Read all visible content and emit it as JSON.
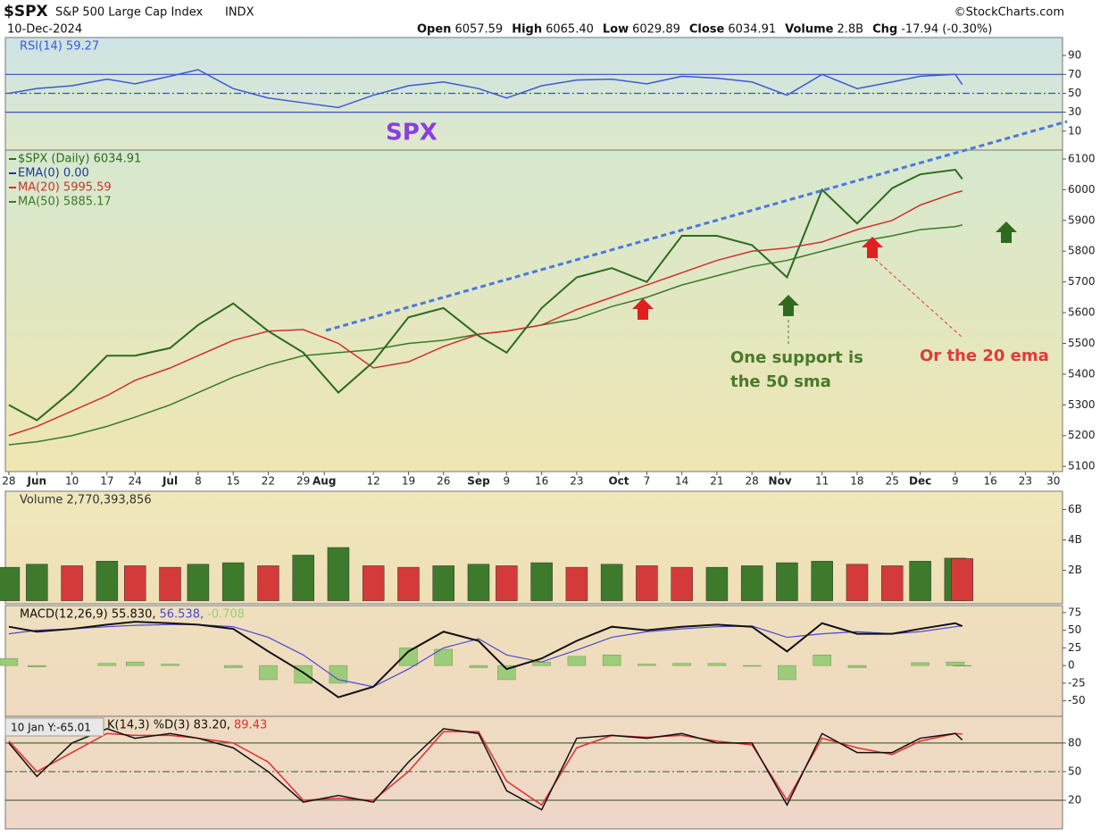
{
  "header": {
    "symbol": "$SPX",
    "name": "S&P 500 Large Cap Index",
    "exchange": "INDX",
    "date": "10-Dec-2024",
    "source": "©StockCharts.com",
    "quote": [
      {
        "label": "Open",
        "value": "6057.59"
      },
      {
        "label": "High",
        "value": "6065.40"
      },
      {
        "label": "Low",
        "value": "6029.89"
      },
      {
        "label": "Close",
        "value": "6034.91"
      },
      {
        "label": "Volume",
        "value": "2.8B"
      },
      {
        "label": "Chg",
        "value": "-17.94 (-0.30%)"
      }
    ]
  },
  "annotations": {
    "spx": "SPX",
    "support": [
      "One support is",
      "the 50 sma"
    ],
    "ema": "Or the 20 ema",
    "cursor": "10 Jan Y:-65.01"
  },
  "chart_data": [
    {
      "type": "line",
      "panel": "rsi",
      "ylim": [
        -10,
        109
      ],
      "yticks": [
        90,
        70,
        50,
        30,
        10
      ],
      "lines": [
        70,
        50,
        30
      ],
      "x": [
        0,
        4,
        9,
        14,
        18,
        23,
        27,
        32,
        37,
        42,
        47,
        52,
        57,
        62,
        67,
        71,
        76,
        81,
        86,
        91,
        96,
        101,
        106,
        111,
        116,
        121,
        126,
        130,
        135,
        136
      ],
      "xlim": [
        -0.5,
        150.3
      ],
      "series": [
        {
          "name": "RSI(14) 59.27",
          "color": "#3b5bd0",
          "values": [
            50,
            55,
            58,
            65,
            60,
            68,
            75,
            55,
            45,
            40,
            35,
            48,
            58,
            62,
            55,
            45,
            58,
            64,
            65,
            60,
            68,
            66,
            62,
            48,
            70,
            55,
            62,
            68,
            70,
            59.27
          ]
        }
      ]
    },
    {
      "type": "line",
      "panel": "price",
      "ylim": [
        5083,
        6129
      ],
      "yticks": [
        6100,
        6000,
        5900,
        5800,
        5700,
        5600,
        5500,
        5400,
        5300,
        5200,
        5100
      ],
      "x": [
        0,
        4,
        9,
        14,
        18,
        23,
        27,
        32,
        37,
        42,
        47,
        52,
        57,
        62,
        67,
        71,
        76,
        81,
        86,
        91,
        96,
        101,
        106,
        111,
        116,
        121,
        126,
        130,
        135,
        136
      ],
      "xlim": [
        -0.5,
        150.3
      ],
      "xticks": [
        {
          "value": 0,
          "label": "28"
        },
        {
          "value": 4,
          "label": "Jun"
        },
        {
          "value": 9,
          "label": "10"
        },
        {
          "value": 14,
          "label": "17"
        },
        {
          "value": 18,
          "label": "24"
        },
        {
          "value": 23,
          "label": "Jul"
        },
        {
          "value": 27,
          "label": "8"
        },
        {
          "value": 32,
          "label": "15"
        },
        {
          "value": 37,
          "label": "22"
        },
        {
          "value": 42,
          "label": "29"
        },
        {
          "value": 45,
          "label": "Aug"
        },
        {
          "value": 52,
          "label": "12"
        },
        {
          "value": 57,
          "label": "19"
        },
        {
          "value": 62,
          "label": "26"
        },
        {
          "value": 67,
          "label": "Sep"
        },
        {
          "value": 71,
          "label": "9"
        },
        {
          "value": 76,
          "label": "16"
        },
        {
          "value": 81,
          "label": "23"
        },
        {
          "value": 87,
          "label": "Oct"
        },
        {
          "value": 91,
          "label": "7"
        },
        {
          "value": 96,
          "label": "14"
        },
        {
          "value": 101,
          "label": "21"
        },
        {
          "value": 106,
          "label": "28"
        },
        {
          "value": 110,
          "label": "Nov"
        },
        {
          "value": 116,
          "label": "11"
        },
        {
          "value": 121,
          "label": "18"
        },
        {
          "value": 126,
          "label": "25"
        },
        {
          "value": 130,
          "label": "Dec"
        },
        {
          "value": 135,
          "label": "9"
        },
        {
          "value": 140,
          "label": "16"
        },
        {
          "value": 145,
          "label": "23"
        },
        {
          "value": 149,
          "label": "30"
        }
      ],
      "extra_legend": {
        "name": "EMA(0) 0.00",
        "color": "#1a3a9a"
      },
      "series": [
        {
          "name": "$SPX (Daily) 6034.91",
          "color": "#2e6b1e",
          "values": [
            5300,
            5250,
            5345,
            5460,
            5460,
            5485,
            5560,
            5630,
            5540,
            5470,
            5340,
            5440,
            5585,
            5615,
            5525,
            5470,
            5615,
            5715,
            5745,
            5700,
            5850,
            5850,
            5820,
            5715,
            6000,
            5890,
            6005,
            6050,
            6065,
            6034.91
          ]
        },
        {
          "name": "MA(20) 5995.59",
          "color": "#d03030",
          "values": [
            5200,
            5230,
            5280,
            5330,
            5380,
            5420,
            5460,
            5510,
            5540,
            5545,
            5500,
            5420,
            5440,
            5490,
            5530,
            5540,
            5560,
            5610,
            5650,
            5690,
            5730,
            5770,
            5800,
            5810,
            5830,
            5870,
            5900,
            5950,
            5990,
            5995.59
          ]
        },
        {
          "name": "MA(50) 5885.17",
          "color": "#3a7a2a",
          "values": [
            5170,
            5180,
            5200,
            5230,
            5260,
            5300,
            5340,
            5390,
            5430,
            5460,
            5470,
            5480,
            5500,
            5510,
            5530,
            5540,
            5560,
            5580,
            5620,
            5650,
            5690,
            5720,
            5750,
            5770,
            5800,
            5830,
            5850,
            5870,
            5880,
            5885.17
          ]
        }
      ]
    },
    {
      "type": "bar",
      "panel": "volume",
      "ylim": [
        -200000000,
        7200000000
      ],
      "yticks": [
        {
          "value": 6000000000,
          "label": "6B"
        },
        {
          "value": 4000000000,
          "label": "4B"
        },
        {
          "value": 2000000000,
          "label": "2B"
        }
      ],
      "x": [
        0,
        4,
        9,
        14,
        18,
        23,
        27,
        32,
        37,
        42,
        47,
        52,
        57,
        62,
        67,
        71,
        76,
        81,
        86,
        91,
        96,
        101,
        106,
        111,
        116,
        121,
        126,
        130,
        135,
        136
      ],
      "xlim": [
        -0.5,
        150.3
      ],
      "up_color": "#3d7a2b",
      "down_color": "#d43a3a",
      "series": [
        {
          "name": "Volume 2,770,393,856",
          "color": "#333333",
          "values": [
            2200000000,
            2400000000,
            2300000000,
            2600000000,
            2300000000,
            2200000000,
            2400000000,
            2500000000,
            2300000000,
            3000000000,
            3500000000,
            2300000000,
            2200000000,
            2300000000,
            2400000000,
            2300000000,
            2500000000,
            2200000000,
            2400000000,
            2300000000,
            2200000000,
            2200000000,
            2300000000,
            2500000000,
            2600000000,
            2400000000,
            2300000000,
            2600000000,
            2800000000,
            2770393856
          ]
        }
      ]
    },
    {
      "type": "macd",
      "panel": "macd",
      "ylim": [
        -72,
        85
      ],
      "yticks": [
        75,
        50,
        25,
        0,
        -25,
        -50
      ],
      "x": [
        0,
        4,
        9,
        14,
        18,
        23,
        27,
        32,
        37,
        42,
        47,
        52,
        57,
        62,
        67,
        71,
        76,
        81,
        86,
        91,
        96,
        101,
        106,
        111,
        116,
        121,
        126,
        130,
        135,
        136
      ],
      "xlim": [
        -0.5,
        150.3
      ],
      "series": [
        {
          "name": "MACD(12,26,9) 55.830,",
          "color": "#111111",
          "values": [
            55,
            48,
            52,
            58,
            62,
            60,
            58,
            52,
            20,
            -10,
            -45,
            -30,
            20,
            48,
            35,
            -5,
            10,
            35,
            55,
            50,
            55,
            58,
            55,
            20,
            60,
            45,
            45,
            52,
            60,
            55.83
          ]
        },
        {
          "name": "56.538,",
          "color": "#4b47d6",
          "values": [
            45,
            50,
            52,
            55,
            57,
            58,
            58,
            55,
            40,
            15,
            -20,
            -30,
            -5,
            25,
            38,
            15,
            5,
            22,
            40,
            48,
            52,
            55,
            56,
            40,
            45,
            48,
            45,
            48,
            55,
            56.538
          ]
        },
        {
          "name": "-0.708",
          "color": "#9ccc7a",
          "values": [
            10,
            -2,
            0,
            3,
            5,
            2,
            0,
            -3,
            -20,
            -25,
            -25,
            0,
            25,
            23,
            -3,
            -20,
            5,
            13,
            15,
            2,
            3,
            3,
            -1,
            -20,
            15,
            -3,
            0,
            4,
            5,
            -0.708
          ]
        }
      ]
    },
    {
      "type": "line",
      "panel": "stoch",
      "ylim": [
        -10,
        108
      ],
      "yticks": [
        80,
        50,
        20
      ],
      "lines": [
        80,
        50,
        20
      ],
      "x": [
        0,
        4,
        9,
        14,
        18,
        23,
        27,
        32,
        37,
        42,
        47,
        52,
        57,
        62,
        67,
        71,
        76,
        81,
        86,
        91,
        96,
        101,
        106,
        111,
        116,
        121,
        126,
        130,
        135,
        136
      ],
      "xlim": [
        -0.5,
        150.3
      ],
      "series": [
        {
          "name": "K(14,3) %D(3) 83.20,",
          "color": "#111111",
          "values": [
            80,
            45,
            80,
            95,
            85,
            90,
            85,
            75,
            50,
            18,
            25,
            18,
            60,
            95,
            90,
            30,
            10,
            85,
            88,
            85,
            90,
            80,
            80,
            15,
            90,
            70,
            70,
            85,
            90,
            83.2
          ]
        },
        {
          "name": "89.43",
          "color": "#e03030",
          "values": [
            82,
            50,
            70,
            90,
            88,
            88,
            85,
            80,
            60,
            20,
            22,
            20,
            50,
            92,
            92,
            40,
            15,
            75,
            88,
            86,
            88,
            82,
            78,
            20,
            85,
            75,
            68,
            82,
            90,
            89.43
          ]
        }
      ]
    }
  ]
}
